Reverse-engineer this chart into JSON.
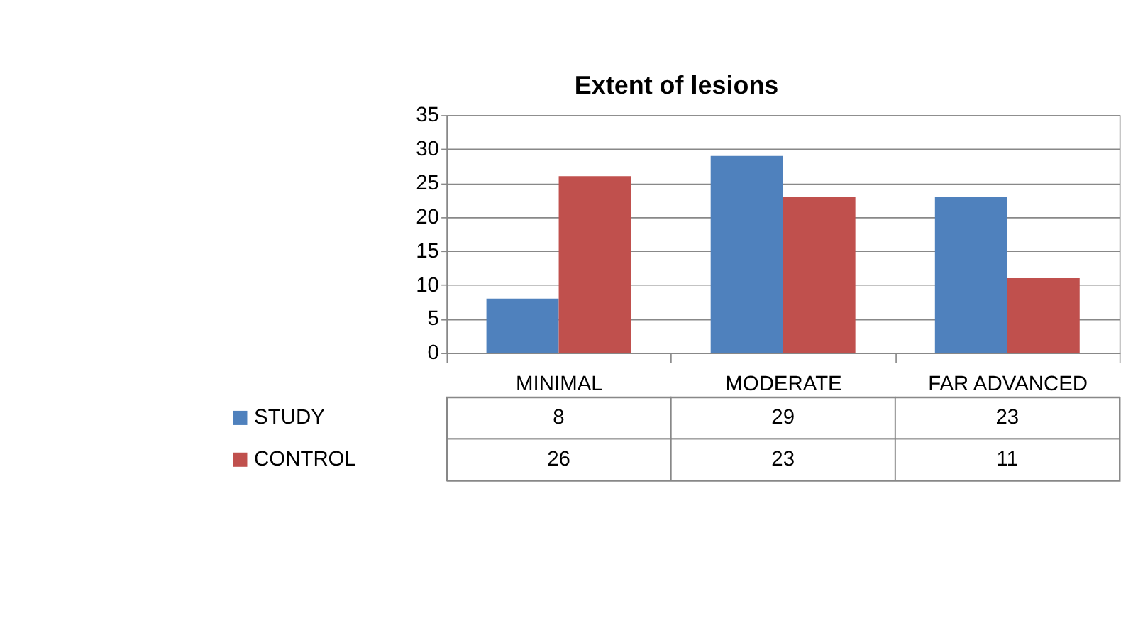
{
  "chart_data": {
    "type": "bar",
    "title": "Extent of lesions",
    "categories": [
      "MINIMAL",
      "MODERATE",
      "FAR ADVANCED"
    ],
    "series": [
      {
        "name": "STUDY",
        "color": "#4f81bd",
        "values": [
          8,
          29,
          23
        ]
      },
      {
        "name": "CONTROL",
        "color": "#c0504d",
        "values": [
          26,
          23,
          11
        ]
      }
    ],
    "ylim": [
      0,
      35
    ],
    "yticks": [
      0,
      5,
      10,
      15,
      20,
      25,
      30,
      35
    ],
    "grid": "y",
    "legend": "bottom",
    "data_labels": true
  }
}
